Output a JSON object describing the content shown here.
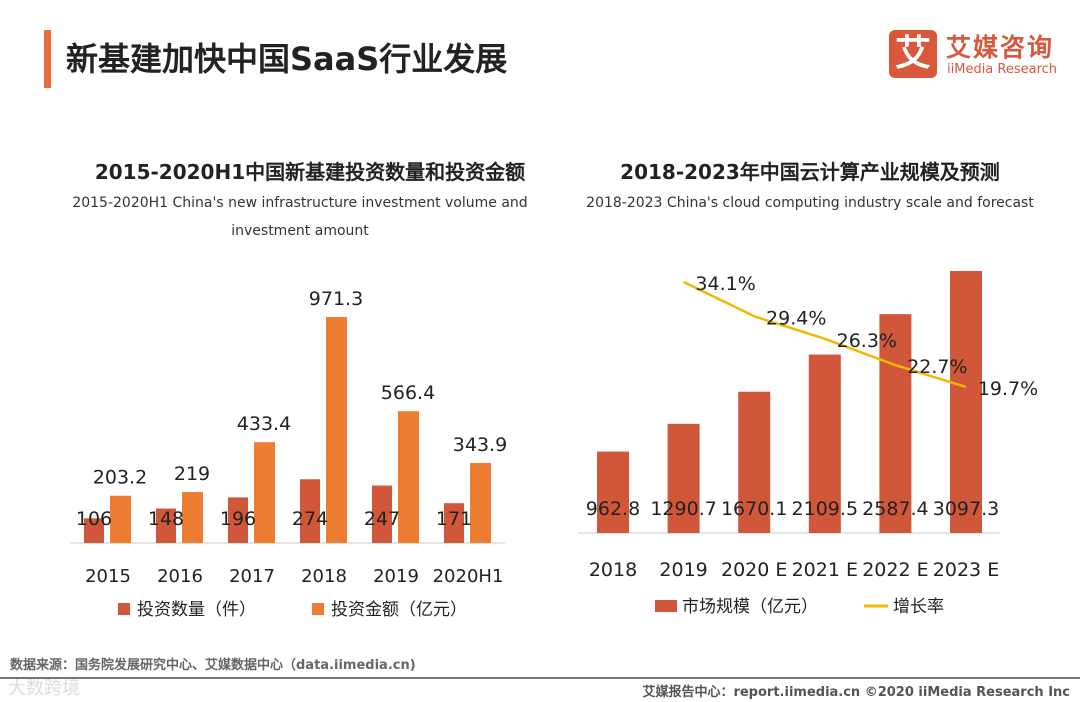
{
  "header": {
    "title": "新基建加快中国SaaS行业发展",
    "logo_icon": "艾",
    "logo_cn": "艾媒咨询",
    "logo_en": "iiMedia Research"
  },
  "colors": {
    "count": "#d0573a",
    "amount": "#ed7d31",
    "market": "#d0573a",
    "growth": "#f2b800",
    "accent": "#ec6a3c"
  },
  "chart_data": [
    {
      "type": "bar",
      "title": "2015-2020H1中国新基建投资数量和投资金额",
      "subtitle": "2015-2020H1 China's new infrastructure investment volume and investment amount",
      "categories": [
        "2015",
        "2016",
        "2017",
        "2018",
        "2019",
        "2020H1"
      ],
      "series": [
        {
          "name": "投资数量（件）",
          "values": [
            106,
            148,
            196,
            274,
            247,
            171
          ]
        },
        {
          "name": "投资金额（亿元）",
          "values": [
            203.2,
            219,
            433.4,
            971.3,
            566.4,
            343.9
          ]
        }
      ],
      "value_labels": [
        [
          "106",
          "148",
          "196",
          "274",
          "247",
          "171"
        ],
        [
          "203.2",
          "219",
          "433.4",
          "971.3",
          "566.4",
          "343.9"
        ]
      ],
      "legend": "bottom",
      "ylim": [
        0,
        1000
      ]
    },
    {
      "type": "bar",
      "title": "2018-2023年中国云计算产业规模及预测",
      "subtitle": "2018-2023 China's cloud computing industry scale and forecast",
      "categories": [
        "2018",
        "2019",
        "2020 E",
        "2021 E",
        "2022 E",
        "2023 E"
      ],
      "series": [
        {
          "name": "市场规模（亿元）",
          "type": "bar",
          "values": [
            962.8,
            1290.7,
            1670.1,
            2109.5,
            2587.4,
            3097.3
          ]
        },
        {
          "name": "增长率",
          "type": "line",
          "values": [
            null,
            34.1,
            29.4,
            26.3,
            22.7,
            19.7
          ]
        }
      ],
      "value_labels": [
        [
          "962.8",
          "1290.7",
          "1670.1",
          "2109.5",
          "2587.4",
          "3097.3"
        ],
        [
          "",
          "34.1%",
          "29.4%",
          "26.3%",
          "22.7%",
          "19.7%"
        ]
      ],
      "legend": "bottom",
      "ylim": [
        0,
        3200
      ]
    }
  ],
  "footer": {
    "source": "数据来源：国务院发展研究中心、艾媒数据中心（data.iimedia.cn)",
    "watermark": "大数跨境",
    "credit": "艾媒报告中心：report.iimedia.cn   ©2020  iiMedia Research  Inc"
  }
}
